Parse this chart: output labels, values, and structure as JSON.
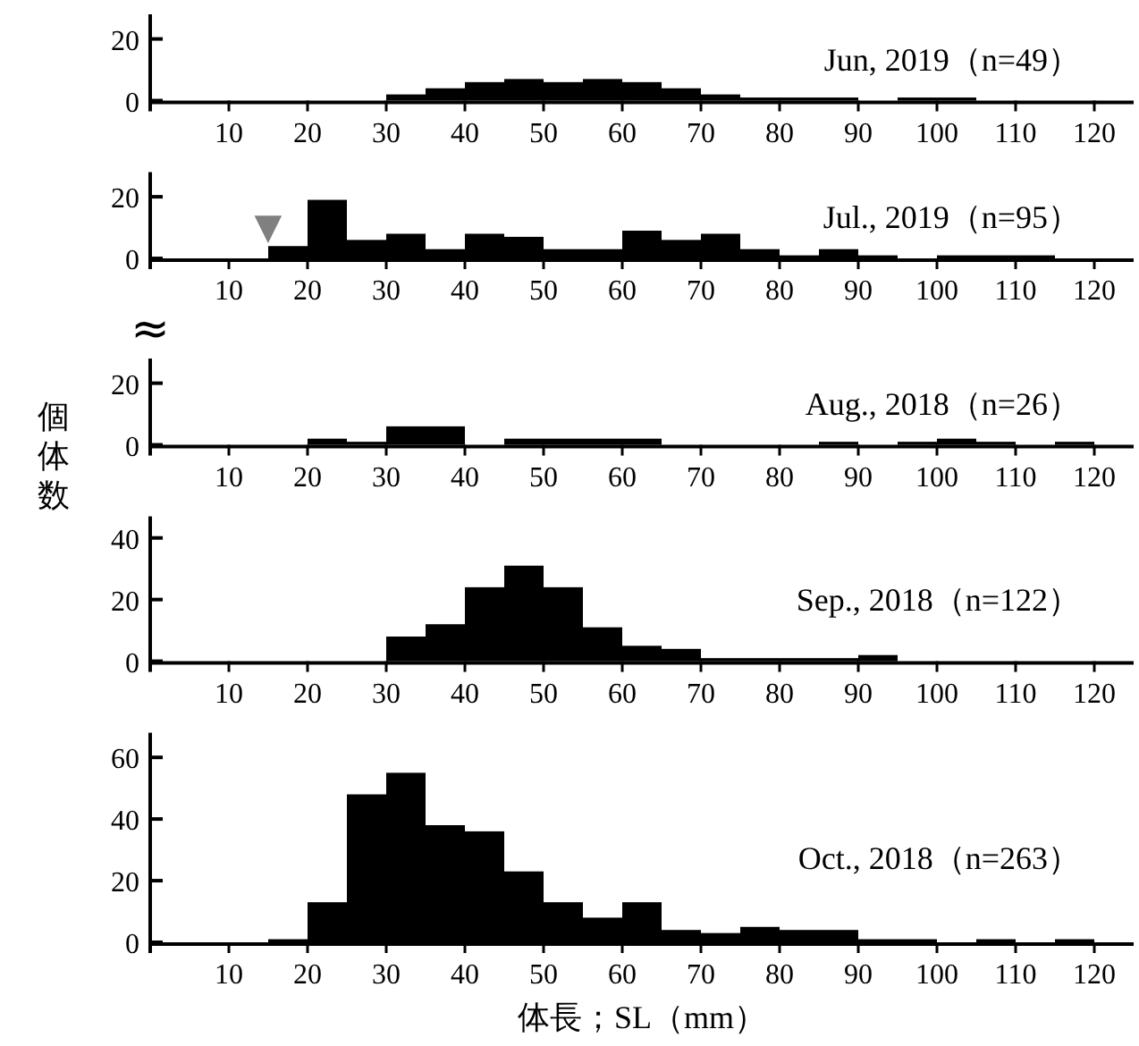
{
  "chart_data": [
    {
      "type": "histogram",
      "title": "Jun, 2019（n=49）",
      "color": "#000000",
      "xlim": [
        0,
        125
      ],
      "xticks": [
        10,
        20,
        30,
        40,
        50,
        60,
        70,
        80,
        90,
        100,
        110,
        120
      ],
      "ylim": [
        0,
        28
      ],
      "yticks": [
        0,
        20
      ],
      "bins": [
        15,
        20,
        25,
        30,
        35,
        40,
        45,
        50,
        55,
        60,
        65,
        70,
        75,
        80,
        85,
        90,
        95,
        100,
        105,
        110,
        115,
        120
      ],
      "values": [
        0,
        0,
        0,
        2,
        4,
        6,
        7,
        6,
        7,
        6,
        4,
        2,
        1,
        1,
        1,
        0,
        1,
        1,
        0,
        0,
        0
      ]
    },
    {
      "type": "histogram",
      "title": "Jul., 2019（n=95）",
      "color": "#000000",
      "xlim": [
        0,
        125
      ],
      "xticks": [
        10,
        20,
        30,
        40,
        50,
        60,
        70,
        80,
        90,
        100,
        110,
        120
      ],
      "ylim": [
        0,
        28
      ],
      "yticks": [
        0,
        20
      ],
      "bins": [
        15,
        20,
        25,
        30,
        35,
        40,
        45,
        50,
        55,
        60,
        65,
        70,
        75,
        80,
        85,
        90,
        95,
        100,
        105,
        110,
        115,
        120
      ],
      "values": [
        4,
        19,
        6,
        8,
        3,
        8,
        7,
        3,
        3,
        9,
        6,
        8,
        3,
        1,
        3,
        1,
        0,
        1,
        1,
        1,
        0
      ],
      "annotations": [
        {
          "text": "▼",
          "x": 15,
          "y": 4
        }
      ]
    },
    {
      "type": "histogram",
      "title": "Aug., 2018（n=26）",
      "color": "#000000",
      "xlim": [
        0,
        125
      ],
      "xticks": [
        10,
        20,
        30,
        40,
        50,
        60,
        70,
        80,
        90,
        100,
        110,
        120
      ],
      "ylim": [
        0,
        28
      ],
      "yticks": [
        0,
        20
      ],
      "ylabel": "個体数",
      "bins": [
        15,
        20,
        25,
        30,
        35,
        40,
        45,
        50,
        55,
        60,
        65,
        70,
        75,
        80,
        85,
        90,
        95,
        100,
        105,
        110,
        115,
        120
      ],
      "values": [
        0,
        2,
        1,
        6,
        6,
        0,
        2,
        2,
        2,
        2,
        0,
        0,
        0,
        0,
        1,
        0,
        1,
        2,
        1,
        0,
        1
      ],
      "annotations": [
        "≈"
      ]
    },
    {
      "type": "histogram",
      "title": "Sep., 2018（n=122）",
      "color": "#000000",
      "xlim": [
        0,
        125
      ],
      "xticks": [
        10,
        20,
        30,
        40,
        50,
        60,
        70,
        80,
        90,
        100,
        110,
        120
      ],
      "ylim": [
        0,
        47
      ],
      "yticks": [
        0,
        20,
        40
      ],
      "bins": [
        15,
        20,
        25,
        30,
        35,
        40,
        45,
        50,
        55,
        60,
        65,
        70,
        75,
        80,
        85,
        90,
        95,
        100,
        105,
        110,
        115,
        120
      ],
      "values": [
        0,
        0,
        0,
        8,
        12,
        24,
        31,
        24,
        11,
        5,
        4,
        1,
        1,
        1,
        1,
        2,
        0,
        0,
        0,
        0,
        0
      ]
    },
    {
      "type": "histogram",
      "title": "Oct., 2018（n=263）",
      "color": "#000000",
      "xlim": [
        0,
        125
      ],
      "xticks": [
        10,
        20,
        30,
        40,
        50,
        60,
        70,
        80,
        90,
        100,
        110,
        120
      ],
      "ylim": [
        0,
        68
      ],
      "yticks": [
        0,
        20,
        40,
        60
      ],
      "xlabel": "体長；SL（mm）",
      "bins": [
        15,
        20,
        25,
        30,
        35,
        40,
        45,
        50,
        55,
        60,
        65,
        70,
        75,
        80,
        85,
        90,
        95,
        100,
        105,
        110,
        115,
        120
      ],
      "values": [
        1,
        13,
        48,
        55,
        38,
        36,
        23,
        13,
        8,
        13,
        4,
        3,
        5,
        4,
        4,
        1,
        1,
        0,
        1,
        0,
        1
      ]
    }
  ]
}
